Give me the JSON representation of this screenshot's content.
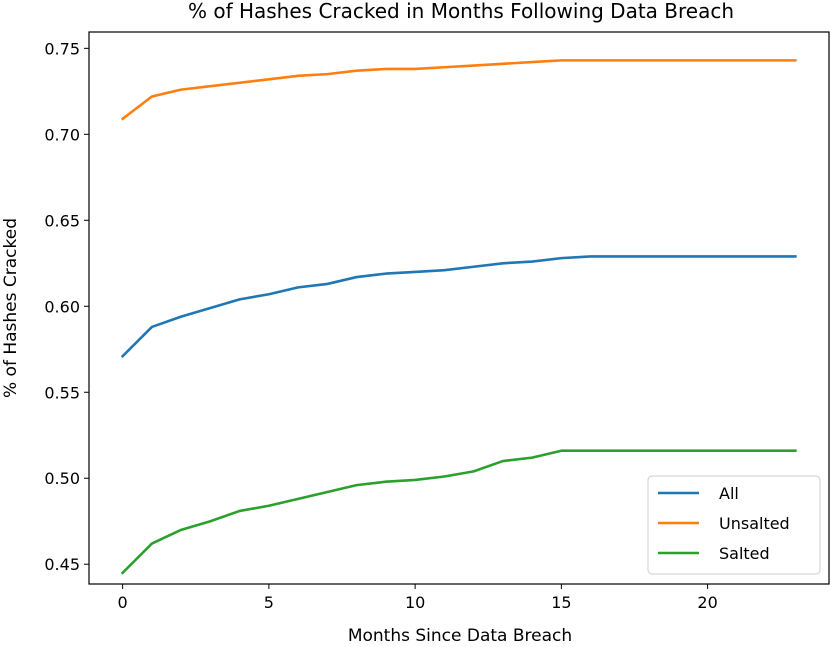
{
  "chart_data": {
    "type": "line",
    "title": "% of Hashes Cracked in Months Following Data Breach",
    "xlabel": "Months Since Data Breach",
    "ylabel": "% of Hashes Cracked",
    "xlim": [
      -1.15,
      24.15
    ],
    "ylim": [
      0.4385,
      0.7595
    ],
    "xticks": [
      0,
      5,
      10,
      15,
      20
    ],
    "yticks": [
      0.45,
      0.5,
      0.55,
      0.6,
      0.65,
      0.7,
      0.75
    ],
    "ytick_labels": [
      "0.45",
      "0.50",
      "0.55",
      "0.60",
      "0.65",
      "0.70",
      "0.75"
    ],
    "x": [
      0,
      1,
      2,
      3,
      4,
      5,
      6,
      7,
      8,
      9,
      10,
      11,
      12,
      13,
      14,
      15,
      16,
      17,
      18,
      19,
      20,
      21,
      22,
      23
    ],
    "series": [
      {
        "name": "All",
        "color": "#1f77b4",
        "values": [
          0.571,
          0.588,
          0.594,
          0.599,
          0.604,
          0.607,
          0.611,
          0.613,
          0.617,
          0.619,
          0.62,
          0.621,
          0.623,
          0.625,
          0.626,
          0.628,
          0.629,
          0.629,
          0.629,
          0.629,
          0.629,
          0.629,
          0.629,
          0.629
        ]
      },
      {
        "name": "Unsalted",
        "color": "#ff7f0e",
        "values": [
          0.709,
          0.722,
          0.726,
          0.728,
          0.73,
          0.732,
          0.734,
          0.735,
          0.737,
          0.738,
          0.738,
          0.739,
          0.74,
          0.741,
          0.742,
          0.743,
          0.743,
          0.743,
          0.743,
          0.743,
          0.743,
          0.743,
          0.743,
          0.743
        ]
      },
      {
        "name": "Salted",
        "color": "#2ca02c",
        "values": [
          0.445,
          0.462,
          0.47,
          0.475,
          0.481,
          0.484,
          0.488,
          0.492,
          0.496,
          0.498,
          0.499,
          0.501,
          0.504,
          0.51,
          0.512,
          0.516,
          0.516,
          0.516,
          0.516,
          0.516,
          0.516,
          0.516,
          0.516,
          0.516
        ]
      }
    ],
    "grid": false,
    "legend_position": "lower-right"
  }
}
